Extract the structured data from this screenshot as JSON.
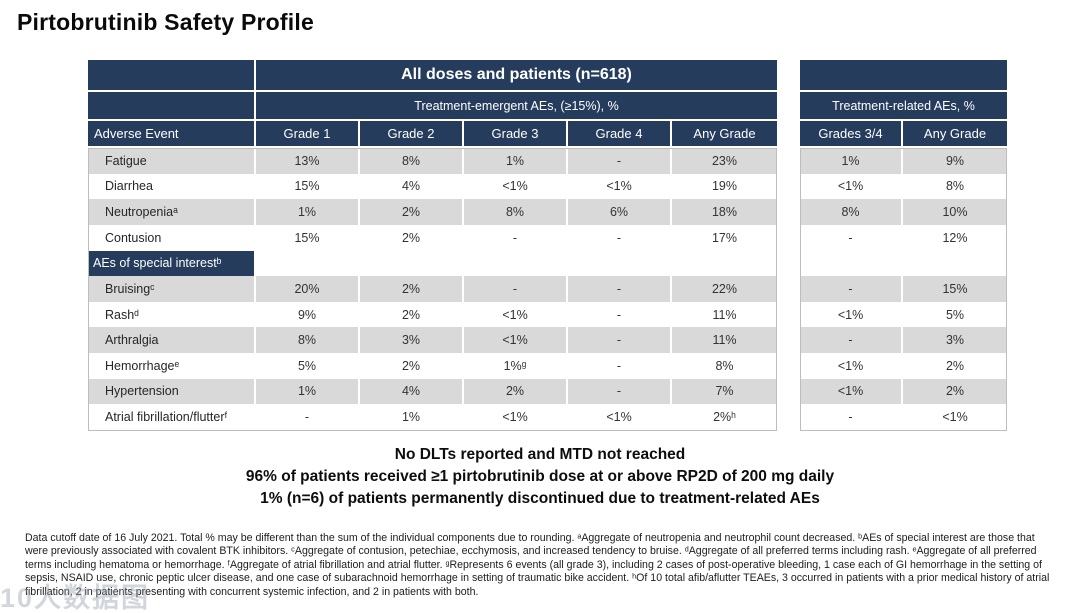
{
  "title": "Pirtobrutinib Safety Profile",
  "table": {
    "left_header": {
      "group_title": "All doses and patients (n=618)",
      "subgroup_title": "Treatment-emergent AEs, (≥15%), %",
      "row_header": "Adverse Event",
      "columns": [
        "Grade 1",
        "Grade 2",
        "Grade 3",
        "Grade 4",
        "Any Grade"
      ]
    },
    "right_header": {
      "subgroup_title": "Treatment-related AEs, %",
      "columns": [
        "Grades 3/4",
        "Any Grade"
      ]
    },
    "rows": [
      {
        "label": "Fatigue",
        "cells": [
          "13%",
          "8%",
          "1%",
          "-",
          "23%"
        ],
        "right": [
          "1%",
          "9%"
        ],
        "shade": true,
        "section": false
      },
      {
        "label": "Diarrhea",
        "cells": [
          "15%",
          "4%",
          "<1%",
          "<1%",
          "19%"
        ],
        "right": [
          "<1%",
          "8%"
        ],
        "shade": false,
        "section": false
      },
      {
        "label": "Neutropeniaᵃ",
        "cells": [
          "1%",
          "2%",
          "8%",
          "6%",
          "18%"
        ],
        "right": [
          "8%",
          "10%"
        ],
        "shade": true,
        "section": false
      },
      {
        "label": "Contusion",
        "cells": [
          "15%",
          "2%",
          "-",
          "-",
          "17%"
        ],
        "right": [
          "-",
          "12%"
        ],
        "shade": false,
        "section": false
      },
      {
        "label": "AEs of special interestᵇ",
        "cells": [
          "",
          "",
          "",
          "",
          ""
        ],
        "right": [
          "",
          ""
        ],
        "shade": false,
        "section": true
      },
      {
        "label": "Bruisingᶜ",
        "cells": [
          "20%",
          "2%",
          "-",
          "-",
          "22%"
        ],
        "right": [
          "-",
          "15%"
        ],
        "shade": true,
        "section": false
      },
      {
        "label": "Rashᵈ",
        "cells": [
          "9%",
          "2%",
          "<1%",
          "-",
          "11%"
        ],
        "right": [
          "<1%",
          "5%"
        ],
        "shade": false,
        "section": false
      },
      {
        "label": "Arthralgia",
        "cells": [
          "8%",
          "3%",
          "<1%",
          "-",
          "11%"
        ],
        "right": [
          "-",
          "3%"
        ],
        "shade": true,
        "section": false
      },
      {
        "label": "Hemorrhageᵉ",
        "cells": [
          "5%",
          "2%",
          "1%ᵍ",
          "-",
          "8%"
        ],
        "right": [
          "<1%",
          "2%"
        ],
        "shade": false,
        "section": false
      },
      {
        "label": "Hypertension",
        "cells": [
          "1%",
          "4%",
          "2%",
          "-",
          "7%"
        ],
        "right": [
          "<1%",
          "2%"
        ],
        "shade": true,
        "section": false
      },
      {
        "label": "Atrial fibrillation/flutterᶠ",
        "cells": [
          "-",
          "1%",
          "<1%",
          "<1%",
          "2%ʰ"
        ],
        "right": [
          "-",
          "<1%"
        ],
        "shade": false,
        "section": false
      }
    ]
  },
  "key_points": [
    "No DLTs reported and MTD not reached",
    "96% of patients received ≥1 pirtobrutinib dose at or above RP2D of 200 mg daily",
    "1% (n=6) of patients permanently discontinued due to treatment-related AEs"
  ],
  "footnote_lines": [
    "Data cutoff date of 16 July 2021. Total % may be different than the sum of the individual components due to rounding. ᵃAggregate of neutropenia and neutrophil count decreased. ᵇAEs of special interest are those that",
    "were previously associated with covalent BTK inhibitors. ᶜAggregate of contusion, petechiae, ecchymosis, and increased tendency to bruise. ᵈAggregate of all preferred terms including rash. ᵉAggregate of all preferred",
    "terms including hematoma or hemorrhage. ᶠAggregate of atrial fibrillation and atrial flutter. ᵍRepresents 6 events (all grade 3), including 2 cases of post-operative bleeding, 1 case each of GI hemorrhage in the setting of",
    "sepsis, NSAID use, chronic peptic ulcer disease, and one case of subarachnoid hemorrhage in setting of traumatic bike accident. ʰOf 10 total afib/aflutter TEAEs, 3 occurred in patients with a prior medical history of atrial",
    "fibrillation, 2 in patients presenting with concurrent systemic infection, and 2 in patients with both."
  ],
  "watermark": "10人数据图",
  "colors": {
    "header_navy": "#253C5C",
    "row_shade": "#D9D9D9"
  }
}
